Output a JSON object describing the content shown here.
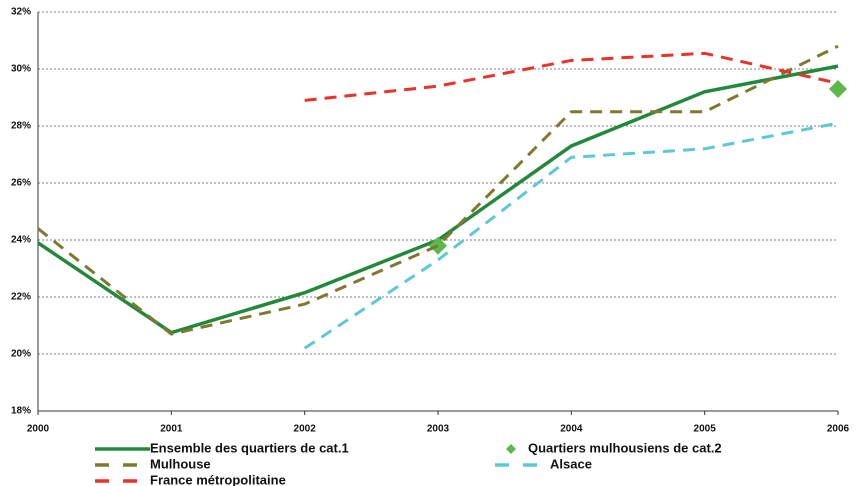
{
  "chart_data": {
    "type": "line",
    "categories": [
      "2000",
      "2001",
      "2002",
      "2003",
      "2004",
      "2005",
      "2006"
    ],
    "ylim": [
      18,
      32
    ],
    "yticks": [
      {
        "value": 18,
        "label": "18%"
      },
      {
        "value": 20,
        "label": "20%"
      },
      {
        "value": 22,
        "label": "22%"
      },
      {
        "value": 24,
        "label": "24%"
      },
      {
        "value": 26,
        "label": "26%"
      },
      {
        "value": 28,
        "label": "28%"
      },
      {
        "value": 30,
        "label": "30%"
      },
      {
        "value": 32,
        "label": "32%"
      }
    ],
    "grid": true,
    "series": [
      {
        "name": "Ensemble des quartiers de cat.1",
        "color": "#23893a",
        "style": "solid",
        "values": [
          23.9,
          20.75,
          22.15,
          24.0,
          27.3,
          29.2,
          30.1
        ]
      },
      {
        "name": "Quartiers mulhousiens de cat.2",
        "color": "#5cb84a",
        "style": "marker",
        "values": [
          null,
          null,
          null,
          23.8,
          null,
          null,
          29.3
        ]
      },
      {
        "name": "Mulhouse",
        "color": "#7d7a30",
        "style": "dashed",
        "values": [
          24.4,
          20.7,
          21.75,
          23.8,
          28.5,
          28.5,
          30.8
        ]
      },
      {
        "name": "Alsace",
        "color": "#5ec8d6",
        "style": "dashed",
        "values": [
          null,
          null,
          20.2,
          23.3,
          26.9,
          27.2,
          28.1
        ]
      },
      {
        "name": "France métropolitaine",
        "color": "#e8322a",
        "style": "dashed",
        "values": [
          null,
          null,
          28.9,
          29.4,
          30.3,
          30.55,
          29.5
        ]
      }
    ]
  }
}
